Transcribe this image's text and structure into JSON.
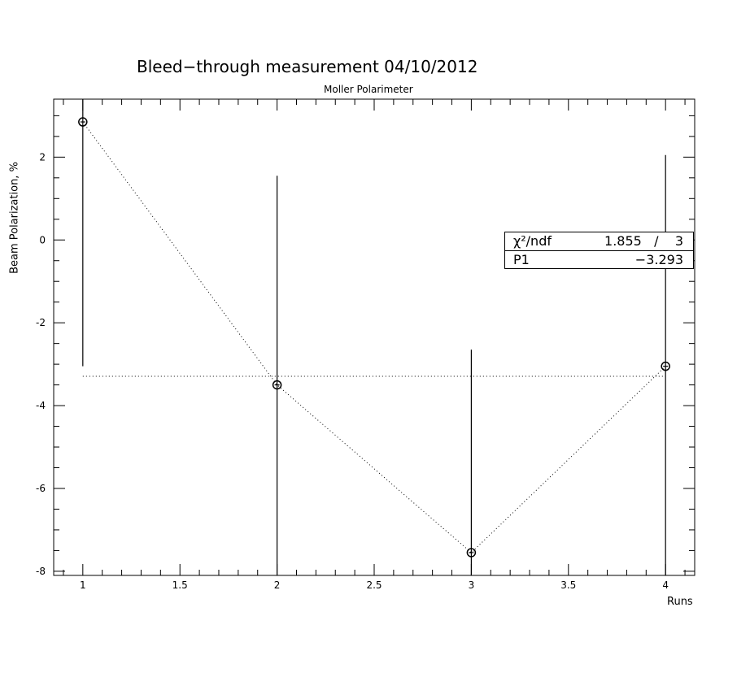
{
  "chart_data": {
    "type": "scatter",
    "title": "Bleed−through measurement 04/10/2012",
    "subtitle": "Moller Polarimeter",
    "xlabel": "Runs",
    "ylabel": "Beam Polarization, %",
    "xlim": [
      0.85,
      4.15
    ],
    "ylim": [
      -8.1,
      3.4
    ],
    "x_ticks": [
      1,
      1.5,
      2,
      2.5,
      3,
      3.5,
      4
    ],
    "x_tick_labels": [
      "1",
      "1.5",
      "2",
      "2.5",
      "3",
      "3.5",
      "4"
    ],
    "y_ticks": [
      -8,
      -6,
      -4,
      -2,
      0,
      2
    ],
    "y_tick_labels": [
      "-8",
      "-6",
      "-4",
      "-2",
      "0",
      "2"
    ],
    "points": [
      {
        "x": 1,
        "y": 2.85,
        "err": 5.9
      },
      {
        "x": 2,
        "y": -3.5,
        "err": 5.05
      },
      {
        "x": 3,
        "y": -7.55,
        "err": 4.9
      },
      {
        "x": 4,
        "y": -3.05,
        "err": 5.1
      }
    ],
    "fit": {
      "value": -3.293,
      "x_range": [
        1,
        4
      ]
    },
    "connect_points": true,
    "grid": false,
    "stats": {
      "chi2_label": "χ²/ndf",
      "chi2_value": "1.855   /    3",
      "p1_label": "P1",
      "p1_value": "−3.293"
    }
  }
}
